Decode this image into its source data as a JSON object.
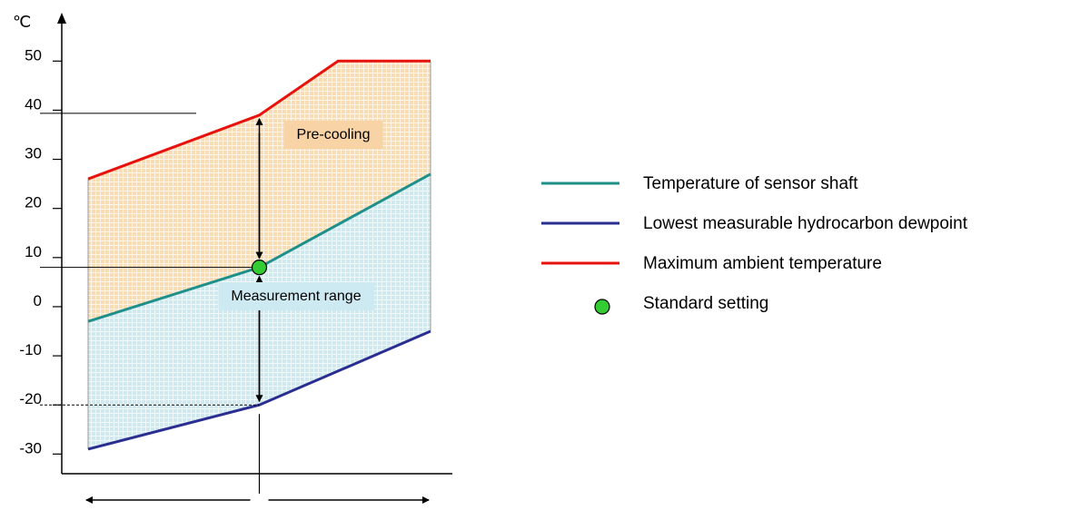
{
  "chart_data": {
    "type": "line",
    "y_unit": "℃",
    "y_ticks": [
      50,
      40,
      30,
      20,
      10,
      0,
      -10,
      -20,
      -30
    ],
    "ylim": [
      -34,
      58
    ],
    "x": [
      0,
      5,
      10
    ],
    "series": [
      {
        "key": "sensor",
        "name": "Temperature of sensor shaft",
        "color": "#1f8f8a",
        "values": [
          -3,
          8,
          27
        ]
      },
      {
        "key": "dewpoint",
        "name": "Lowest measurable hydrocarbon dewpoint",
        "color": "#2b2e91",
        "values": [
          -29,
          -20,
          -5
        ]
      },
      {
        "key": "ambient",
        "name": "Maximum ambient temperature",
        "color": "#e8120c",
        "values": [
          26,
          39,
          50
        ]
      }
    ],
    "standard_setting": {
      "name": "Standard setting",
      "x": 5,
      "y": 8,
      "color": "#33cc33"
    },
    "regions": [
      {
        "key": "precooling",
        "label": "Pre-cooling",
        "color": "#f7d6a8"
      },
      {
        "key": "measurement",
        "label": "Measurement range",
        "color": "#cdeaf2"
      }
    ]
  }
}
